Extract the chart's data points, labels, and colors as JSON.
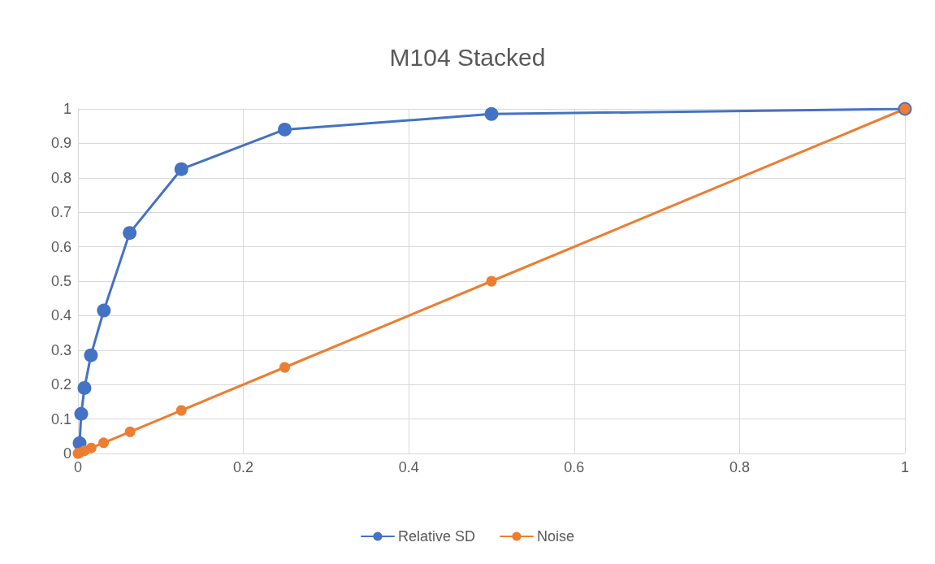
{
  "chart_data": {
    "type": "line",
    "title": "M104 Stacked",
    "xlim": [
      0,
      1
    ],
    "xticks": [
      0,
      0.2,
      0.4,
      0.6,
      0.8,
      1
    ],
    "ylim": [
      0,
      1
    ],
    "yticks": [
      0,
      0.1,
      0.2,
      0.3,
      0.4,
      0.5,
      0.6,
      0.7,
      0.8,
      0.9,
      1
    ],
    "grid": true,
    "legend": "bottom",
    "marker": "circle",
    "line_style": "solid",
    "series": [
      {
        "name": "Relative SD",
        "color": "#4472c4",
        "x": [
          0.001953,
          0.003906,
          0.007813,
          0.015625,
          0.03125,
          0.0625,
          0.125,
          0.25,
          0.5,
          1
        ],
        "values": [
          0.03,
          0.115,
          0.19,
          0.285,
          0.415,
          0.64,
          0.825,
          0.94,
          0.985,
          1
        ]
      },
      {
        "name": "Noise",
        "color": "#ed7d31",
        "x": [
          0,
          0.002,
          0.004,
          0.008,
          0.016,
          0.031,
          0.063,
          0.125,
          0.25,
          0.5,
          1
        ],
        "values": [
          0,
          0.002,
          null,
          0.008,
          0.016,
          0.031,
          0.063,
          0.125,
          0.25,
          0.5,
          1
        ]
      }
    ]
  }
}
